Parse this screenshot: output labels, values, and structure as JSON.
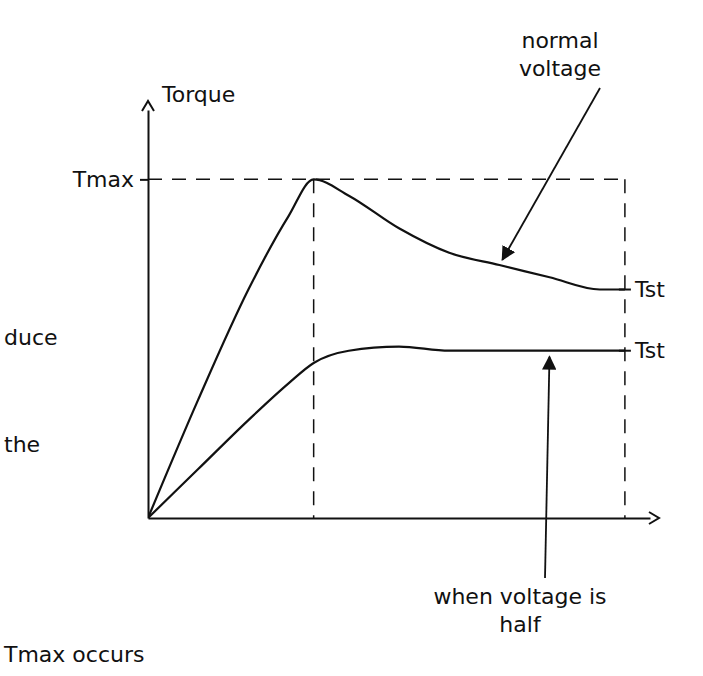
{
  "chart_data": {
    "type": "line",
    "y_label": "Torque",
    "x": [
      0,
      1,
      2,
      2.8,
      3.3,
      4,
      5,
      6,
      7,
      8,
      9,
      9.5
    ],
    "series": [
      {
        "name": "normal voltage",
        "color": "#111111",
        "end_label": "Tst",
        "values": [
          0,
          2.9,
          5.6,
          7.4,
          8.3,
          7.9,
          7.1,
          6.5,
          6.2,
          5.9,
          5.6,
          5.6
        ]
      },
      {
        "name": "when voltage is half",
        "color": "#111111",
        "end_label": "Tst",
        "values": [
          0,
          1.2,
          2.4,
          3.3,
          3.8,
          4.1,
          4.2,
          4.1,
          4.1,
          4.1,
          4.1,
          4.1
        ]
      }
    ],
    "xlim": [
      0,
      10
    ],
    "ylim": [
      0,
      10
    ],
    "yticks": [
      {
        "value": 8.3,
        "label": "Tmax"
      }
    ],
    "tick_labels": "y",
    "grid": false,
    "notes": [
      "duce",
      "the",
      "Tmax occurs"
    ]
  }
}
